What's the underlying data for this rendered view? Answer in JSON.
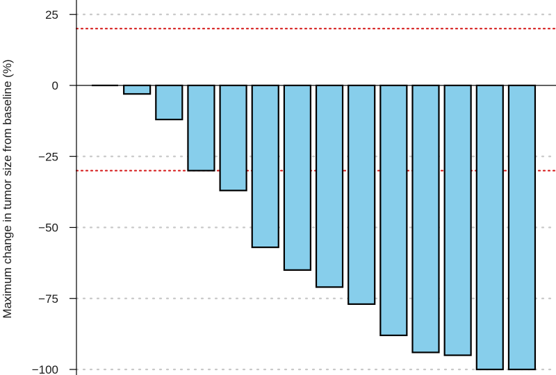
{
  "chart_data": {
    "type": "bar",
    "title": "",
    "xlabel": "",
    "ylabel": "Maximum change in tumor size from baseline (%)",
    "ylim": [
      -100,
      25
    ],
    "yticks": [
      25,
      0,
      -25,
      -50,
      -75,
      -100
    ],
    "ytick_labels": [
      "25",
      "0",
      "−25",
      "−50",
      "−75",
      "−100"
    ],
    "values": [
      0,
      -3,
      -12,
      -30,
      -37,
      -57,
      -65,
      -71,
      -77,
      -88,
      -94,
      -95,
      -100,
      -100
    ],
    "reference_lines": [
      20,
      -30
    ],
    "grid": "horizontal dotted",
    "legend": "none",
    "colors": {
      "bar_fill": "#87CEEB",
      "bar_stroke": "#000000",
      "reference_line": "#d62020",
      "grid": "#c8c8c8",
      "baseline": "#000000"
    }
  }
}
